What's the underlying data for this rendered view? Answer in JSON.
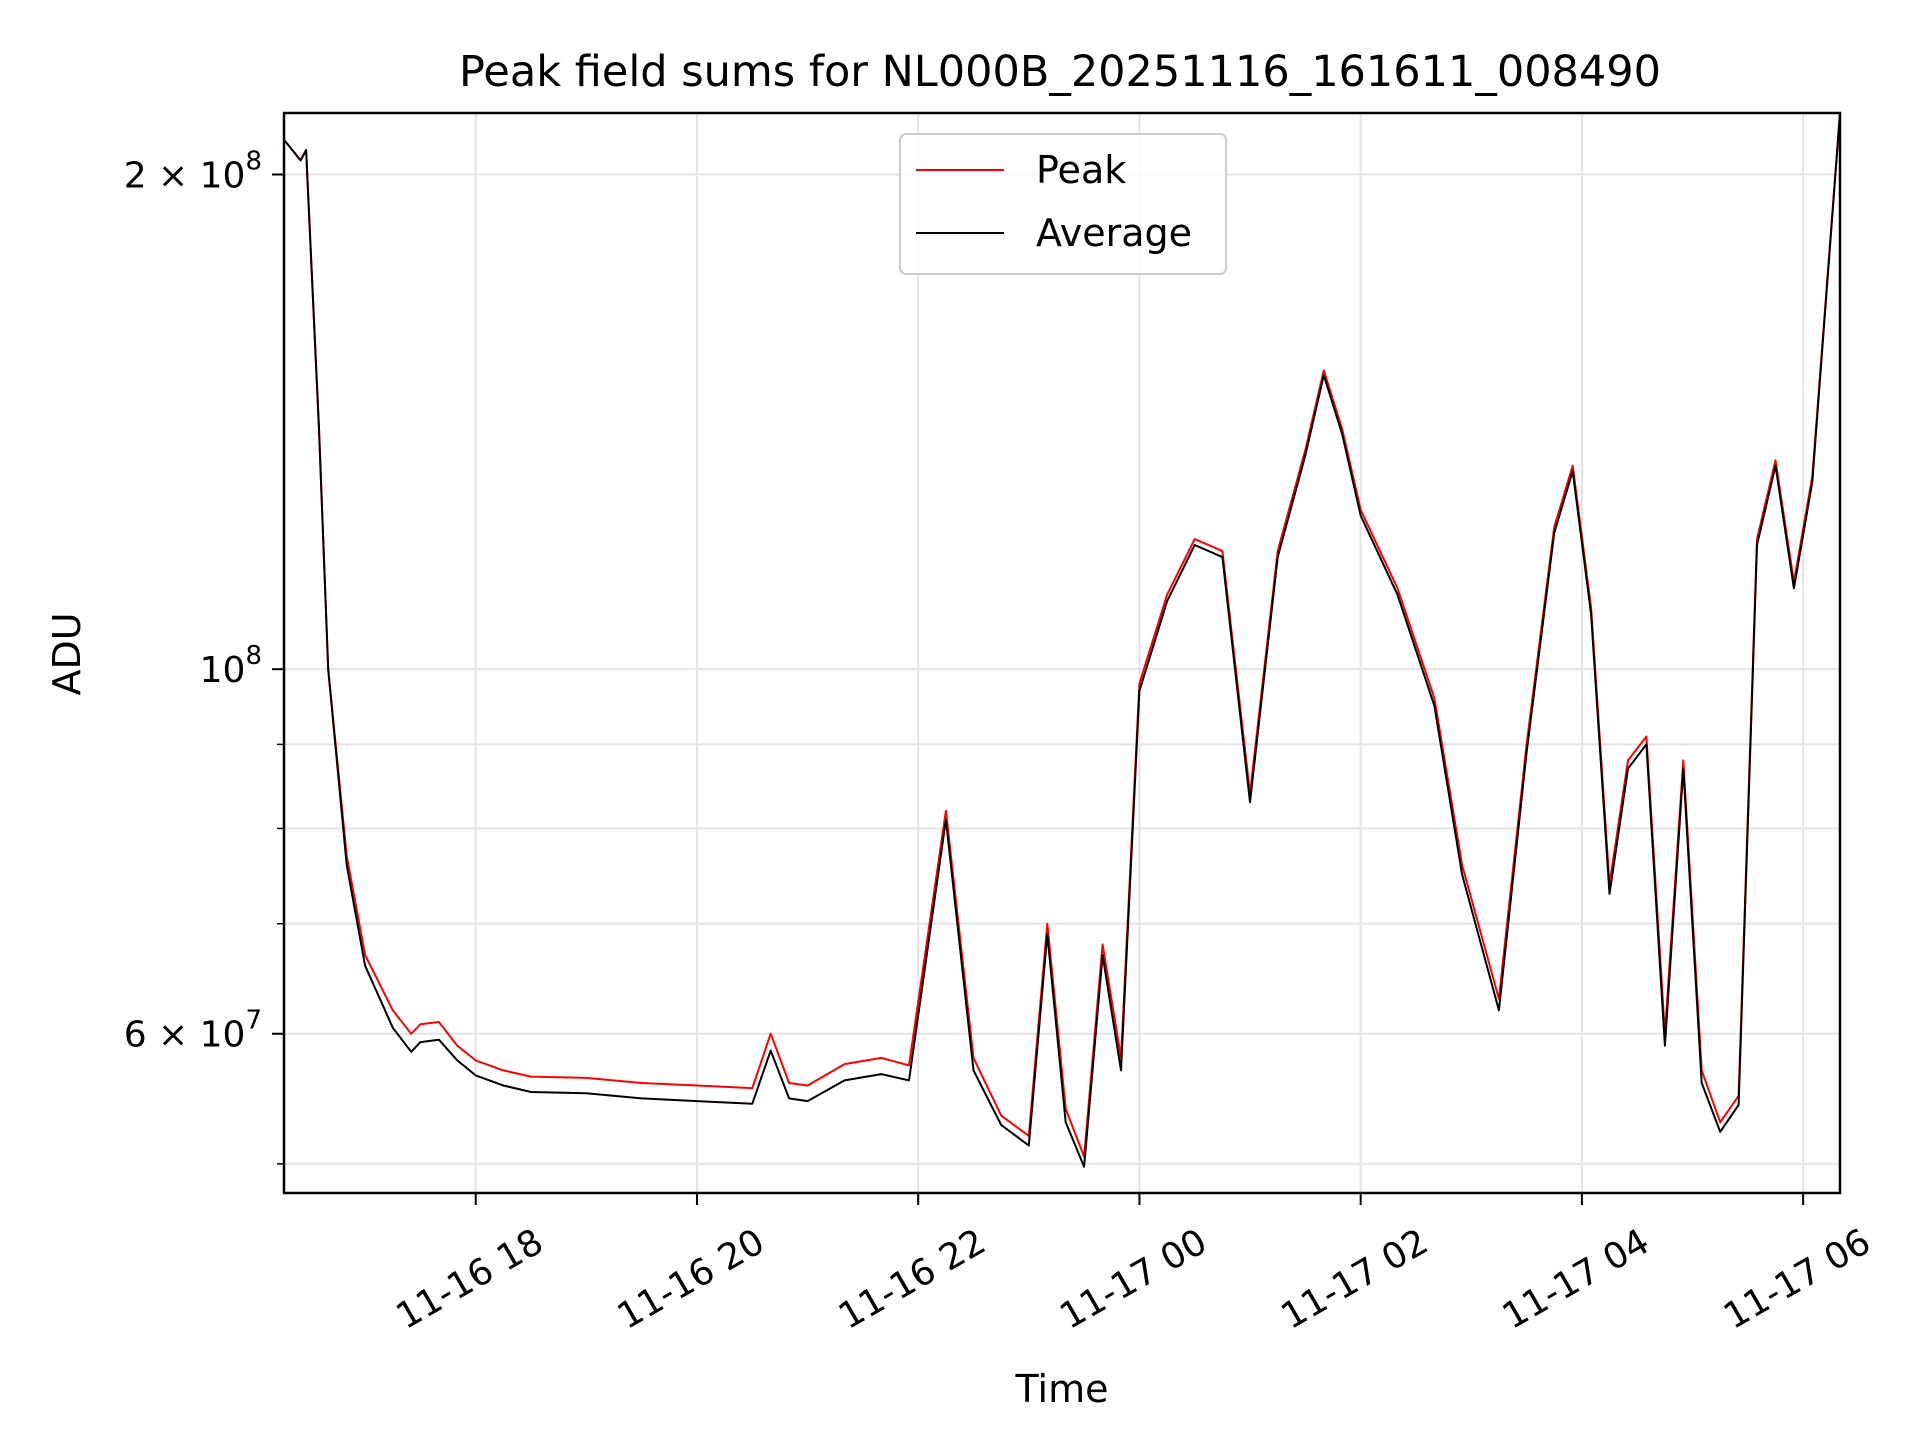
{
  "chart_data": {
    "type": "line",
    "title": "Peak field sums for NL000B_20251116_161611_008490",
    "xlabel": "Time",
    "ylabel": "ADU",
    "y_scale": "log",
    "ylim": [
      48000000,
      218000000
    ],
    "x_ticks": [
      "11-16 18",
      "11-16 20",
      "11-16 22",
      "11-17 00",
      "11-17 02",
      "11-17 04",
      "11-17 06"
    ],
    "y_ticks": [
      "2 × 10^8",
      "10^8",
      "6 × 10^7"
    ],
    "y_minor_ticks": [
      50000000,
      70000000,
      80000000,
      90000000
    ],
    "grid": true,
    "legend_position": "top-center",
    "x_range": [
      "2025-11-16 16:16",
      "2025-11-17 06:20"
    ],
    "series": [
      {
        "name": "Peak",
        "color": "#ff0000",
        "x": [
          "2025-11-16 16:16",
          "2025-11-16 16:25",
          "2025-11-16 16:28",
          "2025-11-16 16:35",
          "2025-11-16 16:40",
          "2025-11-16 16:50",
          "2025-11-16 17:00",
          "2025-11-16 17:15",
          "2025-11-16 17:25",
          "2025-11-16 17:30",
          "2025-11-16 17:40",
          "2025-11-16 17:50",
          "2025-11-16 18:00",
          "2025-11-16 18:15",
          "2025-11-16 18:30",
          "2025-11-16 19:00",
          "2025-11-16 19:30",
          "2025-11-16 20:00",
          "2025-11-16 20:30",
          "2025-11-16 20:40",
          "2025-11-16 20:50",
          "2025-11-16 21:00",
          "2025-11-16 21:20",
          "2025-11-16 21:40",
          "2025-11-16 21:55",
          "2025-11-16 22:15",
          "2025-11-16 22:30",
          "2025-11-16 22:45",
          "2025-11-16 23:00",
          "2025-11-16 23:10",
          "2025-11-16 23:20",
          "2025-11-16 23:30",
          "2025-11-16 23:40",
          "2025-11-16 23:50",
          "2025-11-17 00:00",
          "2025-11-17 00:15",
          "2025-11-17 00:30",
          "2025-11-17 00:45",
          "2025-11-17 01:00",
          "2025-11-17 01:15",
          "2025-11-17 01:30",
          "2025-11-17 01:40",
          "2025-11-17 01:50",
          "2025-11-17 02:00",
          "2025-11-17 02:20",
          "2025-11-17 02:40",
          "2025-11-17 02:55",
          "2025-11-17 03:15",
          "2025-11-17 03:30",
          "2025-11-17 03:45",
          "2025-11-17 03:55",
          "2025-11-17 04:05",
          "2025-11-17 04:15",
          "2025-11-17 04:25",
          "2025-11-17 04:35",
          "2025-11-17 04:45",
          "2025-11-17 04:55",
          "2025-11-17 05:05",
          "2025-11-17 05:15",
          "2025-11-17 05:25",
          "2025-11-17 05:35",
          "2025-11-17 05:45",
          "2025-11-17 05:55",
          "2025-11-17 06:05",
          "2025-11-17 06:20"
        ],
        "y": [
          210000000,
          204000000,
          207000000,
          140000000,
          100000000,
          77000000,
          67000000,
          62000000,
          60000000,
          60800000,
          61000000,
          59000000,
          57800000,
          57000000,
          56500000,
          56400000,
          56000000,
          55800000,
          55600000,
          60000000,
          56000000,
          55800000,
          57500000,
          58000000,
          57400000,
          82000000,
          58000000,
          53500000,
          52000000,
          70000000,
          54000000,
          50500000,
          68000000,
          58000000,
          98000000,
          111000000,
          120000000,
          118000000,
          84000000,
          118000000,
          136000000,
          152000000,
          140000000,
          125000000,
          112000000,
          96000000,
          76000000,
          63000000,
          90000000,
          122000000,
          133000000,
          109000000,
          74000000,
          88000000,
          91000000,
          60000000,
          88000000,
          57000000,
          53000000,
          55000000,
          120000000,
          134000000,
          113000000,
          131000000,
          218000000
        ]
      },
      {
        "name": "Average",
        "color": "#000000",
        "x": [
          "2025-11-16 16:16",
          "2025-11-16 16:25",
          "2025-11-16 16:28",
          "2025-11-16 16:35",
          "2025-11-16 16:40",
          "2025-11-16 16:50",
          "2025-11-16 17:00",
          "2025-11-16 17:15",
          "2025-11-16 17:25",
          "2025-11-16 17:30",
          "2025-11-16 17:40",
          "2025-11-16 17:50",
          "2025-11-16 18:00",
          "2025-11-16 18:15",
          "2025-11-16 18:30",
          "2025-11-16 19:00",
          "2025-11-16 19:30",
          "2025-11-16 20:00",
          "2025-11-16 20:30",
          "2025-11-16 20:40",
          "2025-11-16 20:50",
          "2025-11-16 21:00",
          "2025-11-16 21:20",
          "2025-11-16 21:40",
          "2025-11-16 21:55",
          "2025-11-16 22:15",
          "2025-11-16 22:30",
          "2025-11-16 22:45",
          "2025-11-16 23:00",
          "2025-11-16 23:10",
          "2025-11-16 23:20",
          "2025-11-16 23:30",
          "2025-11-16 23:40",
          "2025-11-16 23:50",
          "2025-11-17 00:00",
          "2025-11-17 00:15",
          "2025-11-17 00:30",
          "2025-11-17 00:45",
          "2025-11-17 01:00",
          "2025-11-17 01:15",
          "2025-11-17 01:30",
          "2025-11-17 01:40",
          "2025-11-17 01:50",
          "2025-11-17 02:00",
          "2025-11-17 02:20",
          "2025-11-17 02:40",
          "2025-11-17 02:55",
          "2025-11-17 03:15",
          "2025-11-17 03:30",
          "2025-11-17 03:45",
          "2025-11-17 03:55",
          "2025-11-17 04:05",
          "2025-11-17 04:15",
          "2025-11-17 04:25",
          "2025-11-17 04:35",
          "2025-11-17 04:45",
          "2025-11-17 04:55",
          "2025-11-17 05:05",
          "2025-11-17 05:15",
          "2025-11-17 05:25",
          "2025-11-17 05:35",
          "2025-11-17 05:45",
          "2025-11-17 05:55",
          "2025-11-17 06:05",
          "2025-11-17 06:20"
        ],
        "y": [
          210000000,
          204000000,
          207000000,
          140000000,
          100000000,
          76000000,
          66000000,
          60500000,
          58500000,
          59300000,
          59500000,
          57800000,
          56600000,
          55800000,
          55300000,
          55200000,
          54800000,
          54600000,
          54400000,
          58600000,
          54800000,
          54600000,
          56200000,
          56700000,
          56200000,
          81000000,
          57000000,
          52800000,
          51300000,
          69000000,
          53000000,
          49800000,
          67000000,
          57000000,
          97000000,
          110000000,
          119000000,
          117000000,
          83000000,
          117000000,
          135000000,
          151000000,
          139000000,
          124000000,
          111000000,
          95000000,
          75000000,
          62000000,
          89000000,
          121000000,
          132000000,
          108000000,
          73000000,
          87000000,
          90000000,
          59000000,
          87000000,
          56000000,
          52300000,
          54300000,
          119000000,
          133000000,
          112000000,
          130000000,
          218000000
        ]
      }
    ]
  }
}
